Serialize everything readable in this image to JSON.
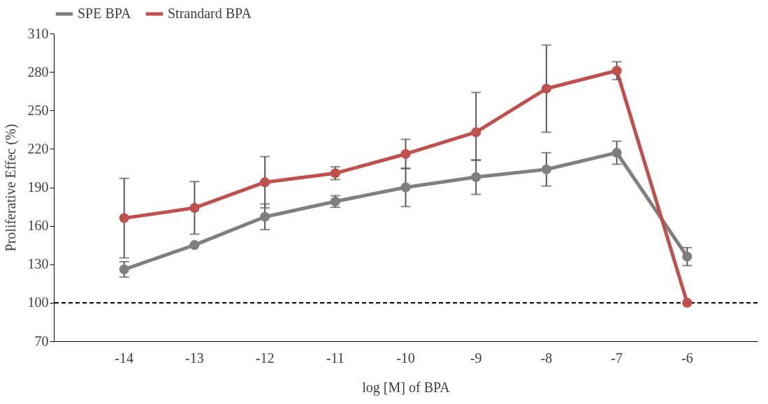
{
  "chart_data": {
    "type": "line",
    "xlabel": "log [M] of  BPA",
    "ylabel": "Proliferative Effec (%)",
    "categories": [
      "-14",
      "-13",
      "-12",
      "-11",
      "-10",
      "-9",
      "-8",
      "-7",
      "-6"
    ],
    "series": [
      {
        "name": "SPE BPA",
        "color": "#7f7f7f",
        "values": [
          126,
          145,
          167,
          179,
          190,
          198,
          204,
          217,
          136
        ],
        "errors": [
          6,
          null,
          10,
          4.5,
          15,
          13.5,
          13,
          9,
          7
        ]
      },
      {
        "name": "Strandard BPA",
        "color": "#c0504d",
        "values": [
          166,
          174,
          194,
          201,
          216,
          233,
          267,
          281,
          100
        ],
        "errors": [
          31,
          20.5,
          20,
          5,
          11.5,
          [
            211,
            264
          ],
          34,
          7,
          null
        ]
      }
    ],
    "ylim": [
      70,
      310
    ],
    "yticks": [
      70,
      100,
      130,
      160,
      190,
      220,
      250,
      280,
      310
    ],
    "ref_lines": [
      {
        "axis": "y",
        "value": 100,
        "color": "#000000",
        "line_style": "dashed"
      }
    ],
    "legend": "top",
    "marker": "circle",
    "line_style": "solid",
    "grid": false
  }
}
